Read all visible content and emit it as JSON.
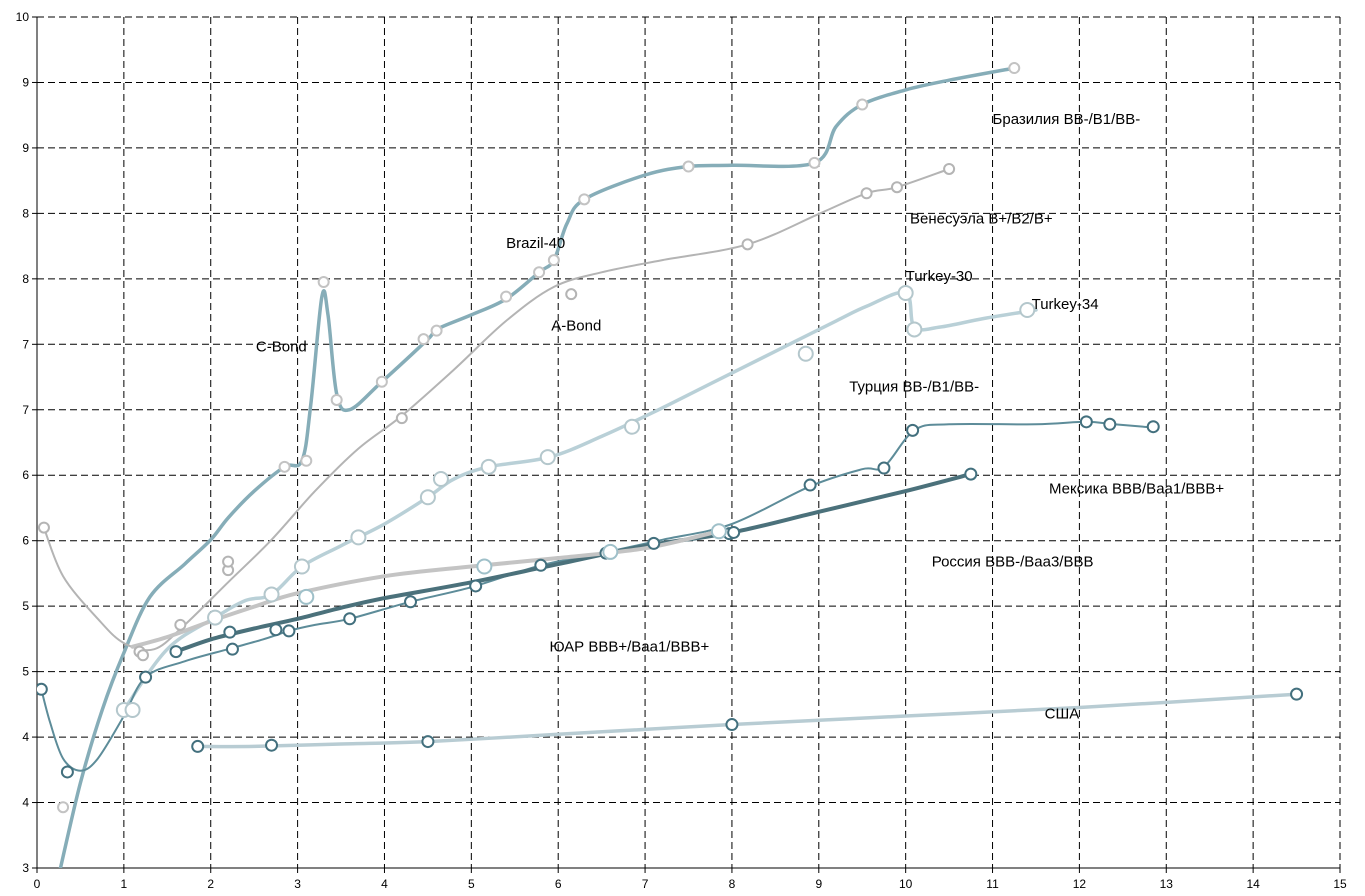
{
  "chart_data": {
    "type": "line",
    "grid": true,
    "x_ticks": [
      "0",
      "1",
      "2",
      "3",
      "4",
      "5",
      "6",
      "7",
      "8",
      "9",
      "10",
      "11",
      "12",
      "13",
      "14",
      "15"
    ],
    "y_ticks": [
      "3",
      "4",
      "4",
      "5",
      "5",
      "6",
      "6",
      "7",
      "7",
      "8",
      "8",
      "9",
      "9",
      "10"
    ],
    "xlim": [
      0,
      15
    ],
    "ylim": [
      3,
      10
    ],
    "annotations": [
      {
        "key": "brazil_label",
        "text": "Бразилия BB-/B1/BB-",
        "x": 11.0,
        "y": 9.12
      },
      {
        "key": "venezuela_label",
        "text": "Венесуэла B+/B2/B+",
        "x": 10.05,
        "y": 8.3
      },
      {
        "key": "brazil40",
        "text": "Brazil-40",
        "x": 5.4,
        "y": 8.1
      },
      {
        "key": "turkey30",
        "text": "Turkey-30",
        "x": 10.0,
        "y": 7.83
      },
      {
        "key": "turkey34",
        "text": "Turkey-34",
        "x": 11.45,
        "y": 7.6
      },
      {
        "key": "abond",
        "text": "A-Bond",
        "x": 5.92,
        "y": 7.42
      },
      {
        "key": "cbond",
        "text": "C-Bond",
        "x": 2.52,
        "y": 7.25
      },
      {
        "key": "turkey_label",
        "text": "Турция BB-/B1/BB-",
        "x": 9.35,
        "y": 6.92
      },
      {
        "key": "mexico_label",
        "text": "Мексика BBB/Baa1/BBB+",
        "x": 11.65,
        "y": 6.08
      },
      {
        "key": "russia_label",
        "text": "Россия BBB-/Baa3/BBB",
        "x": 10.3,
        "y": 5.48
      },
      {
        "key": "sar_label",
        "text": "ЮАР BBB+/Baa1/BBB+",
        "x": 5.9,
        "y": 4.78
      },
      {
        "key": "usa_label",
        "text": "США",
        "x": 11.6,
        "y": 4.23
      }
    ],
    "series": [
      {
        "key": "brazil",
        "color": "#86adb8",
        "width": 3.5,
        "marker": "#c3c3c3",
        "marker_r": 5,
        "points": [
          [
            0.27,
            3.0
          ],
          [
            0.5,
            3.7
          ],
          [
            0.75,
            4.3
          ],
          [
            1.0,
            4.77
          ],
          [
            1.3,
            5.23
          ],
          [
            1.7,
            5.5
          ],
          [
            2.0,
            5.7
          ],
          [
            2.2,
            5.88
          ],
          [
            2.5,
            6.1
          ],
          [
            2.85,
            6.3
          ],
          [
            3.05,
            6.35
          ],
          [
            3.15,
            6.8
          ],
          [
            3.28,
            7.7
          ],
          [
            3.35,
            7.55
          ],
          [
            3.45,
            6.9
          ],
          [
            3.6,
            6.77
          ],
          [
            3.97,
            7.0
          ],
          [
            4.5,
            7.35
          ],
          [
            4.6,
            7.43
          ],
          [
            5.0,
            7.55
          ],
          [
            5.4,
            7.68
          ],
          [
            5.78,
            7.9
          ],
          [
            5.95,
            8.0
          ],
          [
            6.1,
            8.3
          ],
          [
            6.3,
            8.5
          ],
          [
            7.0,
            8.7
          ],
          [
            7.5,
            8.77
          ],
          [
            8.0,
            8.78
          ],
          [
            8.95,
            8.8
          ],
          [
            9.2,
            9.1
          ],
          [
            9.5,
            9.28
          ],
          [
            10.0,
            9.4
          ],
          [
            10.5,
            9.48
          ],
          [
            11.25,
            9.58
          ]
        ],
        "markers": [
          [
            0.3,
            3.5
          ],
          [
            2.85,
            6.3
          ],
          [
            3.1,
            6.35
          ],
          [
            3.3,
            7.82
          ],
          [
            3.45,
            6.85
          ],
          [
            3.97,
            7.0
          ],
          [
            4.45,
            7.35
          ],
          [
            4.6,
            7.42
          ],
          [
            5.4,
            7.7
          ],
          [
            5.78,
            7.9
          ],
          [
            5.95,
            8.0
          ],
          [
            6.3,
            8.5
          ],
          [
            7.5,
            8.77
          ],
          [
            8.95,
            8.8
          ],
          [
            9.5,
            9.28
          ],
          [
            11.25,
            9.58
          ]
        ]
      },
      {
        "key": "venezuela",
        "color": "#b4b4b4",
        "width": 2,
        "marker": "#b4b4b4",
        "marker_r": 5,
        "points": [
          [
            0.08,
            5.8
          ],
          [
            0.3,
            5.4
          ],
          [
            0.7,
            5.05
          ],
          [
            1.0,
            4.85
          ],
          [
            1.35,
            4.8
          ],
          [
            1.7,
            5.0
          ],
          [
            2.2,
            5.35
          ],
          [
            2.7,
            5.7
          ],
          [
            3.2,
            6.1
          ],
          [
            3.7,
            6.45
          ],
          [
            4.2,
            6.72
          ],
          [
            4.8,
            7.1
          ],
          [
            5.4,
            7.5
          ],
          [
            5.95,
            7.78
          ],
          [
            6.5,
            7.9
          ],
          [
            7.2,
            8.0
          ],
          [
            8.18,
            8.13
          ],
          [
            9.0,
            8.38
          ],
          [
            9.55,
            8.55
          ],
          [
            9.9,
            8.6
          ],
          [
            10.5,
            8.75
          ]
        ],
        "markers": [
          [
            0.08,
            5.8
          ],
          [
            1.18,
            4.78
          ],
          [
            1.22,
            4.75
          ],
          [
            2.2,
            5.45
          ],
          [
            2.2,
            5.52
          ],
          [
            1.65,
            5.0
          ],
          [
            4.2,
            6.7
          ],
          [
            6.15,
            7.72
          ],
          [
            8.18,
            8.13
          ],
          [
            9.55,
            8.55
          ],
          [
            9.9,
            8.6
          ],
          [
            10.5,
            8.75
          ]
        ]
      },
      {
        "key": "turkey30",
        "color": "#b9d0d7",
        "width": 3.5,
        "marker": "#b4c7cc",
        "marker_r": 7,
        "points": [
          [
            1.0,
            4.3
          ],
          [
            1.5,
            4.8
          ],
          [
            2.05,
            5.06
          ],
          [
            2.4,
            5.2
          ],
          [
            2.7,
            5.25
          ],
          [
            3.05,
            5.48
          ],
          [
            3.5,
            5.65
          ],
          [
            4.0,
            5.83
          ],
          [
            4.5,
            6.05
          ],
          [
            4.8,
            6.2
          ],
          [
            5.2,
            6.3
          ],
          [
            5.9,
            6.38
          ],
          [
            6.5,
            6.55
          ],
          [
            7.1,
            6.75
          ],
          [
            7.8,
            7.0
          ],
          [
            8.5,
            7.25
          ],
          [
            9.2,
            7.5
          ],
          [
            9.55,
            7.62
          ],
          [
            10.0,
            7.73
          ],
          [
            10.1,
            7.45
          ],
          [
            10.4,
            7.45
          ],
          [
            10.9,
            7.52
          ],
          [
            11.5,
            7.59
          ]
        ],
        "markers": [
          [
            1.0,
            4.3
          ],
          [
            1.1,
            4.3
          ],
          [
            2.05,
            5.06
          ],
          [
            2.7,
            5.25
          ],
          [
            3.05,
            5.48
          ],
          [
            3.7,
            5.72
          ],
          [
            4.5,
            6.05
          ],
          [
            4.65,
            6.2
          ],
          [
            5.2,
            6.3
          ],
          [
            5.88,
            6.38
          ],
          [
            6.85,
            6.63
          ],
          [
            8.85,
            7.23
          ],
          [
            10.0,
            7.73
          ],
          [
            10.1,
            7.43
          ],
          [
            11.4,
            7.59
          ]
        ]
      },
      {
        "key": "mexico",
        "color": "#5d8c99",
        "width": 2,
        "marker": "#43707e",
        "marker_r": 5.5,
        "points": [
          [
            0.05,
            4.47
          ],
          [
            0.15,
            4.2
          ],
          [
            0.3,
            3.9
          ],
          [
            0.5,
            3.8
          ],
          [
            0.7,
            3.9
          ],
          [
            1.0,
            4.25
          ],
          [
            1.25,
            4.57
          ],
          [
            1.7,
            4.7
          ],
          [
            2.2,
            4.8
          ],
          [
            2.6,
            4.88
          ],
          [
            2.9,
            4.95
          ],
          [
            3.2,
            5.0
          ],
          [
            3.6,
            5.05
          ],
          [
            4.3,
            5.19
          ],
          [
            5.0,
            5.31
          ],
          [
            5.8,
            5.49
          ],
          [
            6.5,
            5.59
          ],
          [
            7.2,
            5.7
          ],
          [
            8.0,
            5.83
          ],
          [
            8.9,
            6.14
          ],
          [
            9.5,
            6.28
          ],
          [
            9.75,
            6.3
          ],
          [
            10.1,
            6.6
          ],
          [
            10.5,
            6.65
          ],
          [
            11.5,
            6.65
          ],
          [
            12.08,
            6.67
          ],
          [
            12.4,
            6.65
          ],
          [
            12.9,
            6.62
          ]
        ],
        "markers": [
          [
            0.05,
            4.47
          ],
          [
            0.35,
            3.79
          ],
          [
            1.25,
            4.57
          ],
          [
            2.25,
            4.8
          ],
          [
            2.75,
            4.96
          ],
          [
            2.9,
            4.95
          ],
          [
            3.6,
            5.05
          ],
          [
            4.3,
            5.19
          ],
          [
            5.05,
            5.32
          ],
          [
            5.8,
            5.49
          ],
          [
            6.55,
            5.59
          ],
          [
            7.1,
            5.67
          ],
          [
            7.97,
            5.75
          ],
          [
            8.9,
            6.15
          ],
          [
            9.75,
            6.29
          ],
          [
            10.08,
            6.6
          ],
          [
            12.08,
            6.67
          ],
          [
            12.35,
            6.65
          ],
          [
            12.85,
            6.63
          ]
        ]
      },
      {
        "key": "russia",
        "color": "#4b717b",
        "width": 4,
        "marker": "#43707e",
        "marker_r": 5.5,
        "points": [
          [
            1.6,
            4.78
          ],
          [
            2.0,
            4.88
          ],
          [
            2.5,
            4.97
          ],
          [
            3.0,
            5.05
          ],
          [
            3.5,
            5.14
          ],
          [
            4.0,
            5.22
          ],
          [
            5.0,
            5.35
          ],
          [
            6.0,
            5.5
          ],
          [
            7.0,
            5.65
          ],
          [
            8.0,
            5.76
          ],
          [
            9.0,
            5.93
          ],
          [
            10.0,
            6.1
          ],
          [
            10.75,
            6.24
          ]
        ],
        "markers": [
          [
            1.6,
            4.78
          ],
          [
            2.22,
            4.94
          ],
          [
            8.02,
            5.76
          ],
          [
            10.75,
            6.24
          ]
        ]
      },
      {
        "key": "sar",
        "color": "#c4c4c4",
        "width": 4,
        "marker": "#9fc0c9",
        "marker_r": 7,
        "points": [
          [
            1.1,
            4.82
          ],
          [
            1.5,
            4.9
          ],
          [
            2.0,
            5.03
          ],
          [
            2.5,
            5.15
          ],
          [
            3.0,
            5.26
          ],
          [
            4.0,
            5.4
          ],
          [
            5.0,
            5.48
          ],
          [
            6.0,
            5.55
          ],
          [
            7.0,
            5.63
          ],
          [
            7.85,
            5.77
          ]
        ],
        "markers": [
          [
            3.1,
            5.23
          ],
          [
            5.15,
            5.48
          ],
          [
            6.6,
            5.6
          ],
          [
            7.85,
            5.77
          ]
        ]
      },
      {
        "key": "usa",
        "color": "#b8ccd3",
        "width": 3.5,
        "marker": "#43707e",
        "marker_r": 5.5,
        "points": [
          [
            1.85,
            4.0
          ],
          [
            2.5,
            4.0
          ],
          [
            3.5,
            4.02
          ],
          [
            4.5,
            4.04
          ],
          [
            6.0,
            4.1
          ],
          [
            7.0,
            4.14
          ],
          [
            8.0,
            4.18
          ],
          [
            10.0,
            4.25
          ],
          [
            12.0,
            4.32
          ],
          [
            14.5,
            4.43
          ]
        ],
        "markers": [
          [
            1.85,
            4.0
          ],
          [
            2.7,
            4.01
          ],
          [
            4.5,
            4.04
          ],
          [
            8.0,
            4.18
          ],
          [
            14.5,
            4.43
          ]
        ]
      }
    ]
  }
}
